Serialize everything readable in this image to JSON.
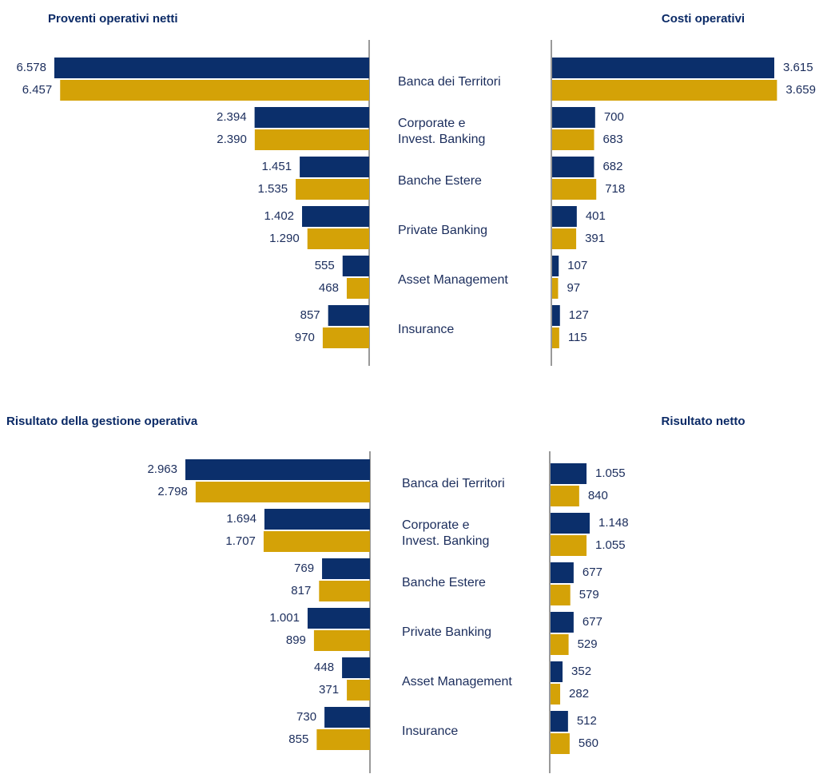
{
  "chart_data": [
    {
      "type": "bar",
      "title": "Proventi operativi netti",
      "categories": [
        "Banca dei Territori",
        "Corporate e\nInvest. Banking",
        "Banche Estere",
        "Private Banking",
        "Asset Management",
        "Insurance"
      ],
      "series": [
        {
          "color": "#0b2f6b",
          "values": [
            6578,
            2394,
            1451,
            1402,
            555,
            857
          ],
          "value_labels": [
            "6.578",
            "2.394",
            "1.451",
            "1.402",
            "555",
            "857"
          ]
        },
        {
          "color": "#d4a207",
          "values": [
            6457,
            2390,
            1535,
            1290,
            468,
            970
          ],
          "value_labels": [
            "6.457",
            "2.390",
            "1.535",
            "1.290",
            "468",
            "970"
          ]
        }
      ]
    },
    {
      "type": "bar",
      "title": "Costi operativi",
      "series": [
        {
          "color": "#0b2f6b",
          "values": [
            3615,
            700,
            682,
            401,
            107,
            127
          ],
          "value_labels": [
            "3.615",
            "700",
            "682",
            "401",
            "107",
            "127"
          ]
        },
        {
          "color": "#d4a207",
          "values": [
            3659,
            683,
            718,
            391,
            97,
            115
          ],
          "value_labels": [
            "3.659",
            "683",
            "718",
            "391",
            "97",
            "115"
          ]
        }
      ]
    },
    {
      "type": "bar",
      "title": "Risultato della gestione operativa",
      "categories": [
        "Banca dei Territori",
        "Corporate e\nInvest. Banking",
        "Banche Estere",
        "Private Banking",
        "Asset Management",
        "Insurance"
      ],
      "series": [
        {
          "color": "#0b2f6b",
          "values": [
            2963,
            1694,
            769,
            1001,
            448,
            730
          ],
          "value_labels": [
            "2.963",
            "1.694",
            "769",
            "1.001",
            "448",
            "730"
          ]
        },
        {
          "color": "#d4a207",
          "values": [
            2798,
            1707,
            817,
            899,
            371,
            855
          ],
          "value_labels": [
            "2.798",
            "1.707",
            "817",
            "899",
            "371",
            "855"
          ]
        }
      ]
    },
    {
      "type": "bar",
      "title": "Risultato netto",
      "series": [
        {
          "color": "#0b2f6b",
          "values": [
            1055,
            1148,
            677,
            677,
            352,
            512
          ],
          "value_labels": [
            "1.055",
            "1.148",
            "677",
            "677",
            "352",
            "512"
          ]
        },
        {
          "color": "#d4a207",
          "values": [
            840,
            1055,
            579,
            529,
            282,
            560
          ],
          "value_labels": [
            "840",
            "1.055",
            "579",
            "529",
            "282",
            "560"
          ]
        }
      ]
    }
  ]
}
